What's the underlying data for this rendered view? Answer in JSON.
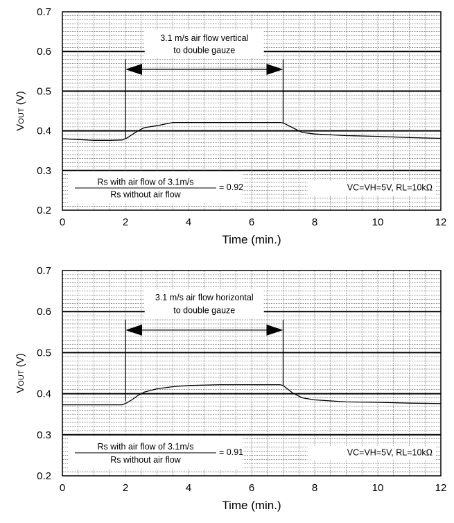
{
  "chart_data": [
    {
      "type": "line",
      "xlabel": "Time (min.)",
      "ylabel_main": "V",
      "ylabel_sub": "OUT",
      "ylabel_unit": " (V)",
      "xlim": [
        0,
        12
      ],
      "ylim": [
        0.2,
        0.7
      ],
      "xticks": [
        "0",
        "2",
        "4",
        "6",
        "8",
        "10",
        "12"
      ],
      "yticks": [
        "0.2",
        "0.3",
        "0.4",
        "0.5",
        "0.6",
        "0.7"
      ],
      "grid": true,
      "annotation_lines": [
        "3.1 m/s air flow vertical",
        "to double gauze"
      ],
      "arrow_range": [
        2,
        7
      ],
      "ratio_numerator": "Rs with air flow of 3.1m/s",
      "ratio_denominator": "Rs without air flow",
      "ratio_value": "= 0.92",
      "conditions": "VC=VH=5V, RL=10kΩ",
      "series": [
        {
          "x": [
            0,
            0.5,
            1,
            1.5,
            1.9,
            2.05,
            2.2,
            2.4,
            2.6,
            3.0,
            3.5,
            4,
            5,
            6,
            6.9,
            7.0,
            7.3,
            7.6,
            8,
            9,
            10,
            11,
            12
          ],
          "values": [
            0.38,
            0.378,
            0.376,
            0.376,
            0.377,
            0.382,
            0.39,
            0.4,
            0.408,
            0.413,
            0.421,
            0.421,
            0.421,
            0.421,
            0.421,
            0.42,
            0.408,
            0.396,
            0.392,
            0.388,
            0.386,
            0.383,
            0.381
          ]
        }
      ]
    },
    {
      "type": "line",
      "xlabel": "Time (min.)",
      "ylabel_main": "V",
      "ylabel_sub": "OUT",
      "ylabel_unit": " (V)",
      "xlim": [
        0,
        12
      ],
      "ylim": [
        0.2,
        0.7
      ],
      "xticks": [
        "0",
        "2",
        "4",
        "6",
        "8",
        "10",
        "12"
      ],
      "yticks": [
        "0.2",
        "0.3",
        "0.4",
        "0.5",
        "0.6",
        "0.7"
      ],
      "grid": true,
      "annotation_lines": [
        "3.1 m/s air flow horizontal",
        "to double gauze"
      ],
      "arrow_range": [
        2,
        7
      ],
      "ratio_numerator": "Rs with air flow of 3.1m/s",
      "ratio_denominator": "Rs without air flow",
      "ratio_value": "= 0.91",
      "conditions": "VC=VH=5V, RL=10kΩ",
      "series": [
        {
          "x": [
            0,
            0.5,
            1,
            1.5,
            1.9,
            2.05,
            2.2,
            2.4,
            2.6,
            3.0,
            3.5,
            4,
            5,
            6,
            6.9,
            7.0,
            7.3,
            7.6,
            8,
            9,
            10,
            11,
            12
          ],
          "values": [
            0.373,
            0.373,
            0.373,
            0.373,
            0.373,
            0.378,
            0.385,
            0.396,
            0.404,
            0.412,
            0.417,
            0.42,
            0.422,
            0.422,
            0.422,
            0.42,
            0.402,
            0.39,
            0.385,
            0.38,
            0.379,
            0.377,
            0.376
          ]
        }
      ]
    }
  ]
}
